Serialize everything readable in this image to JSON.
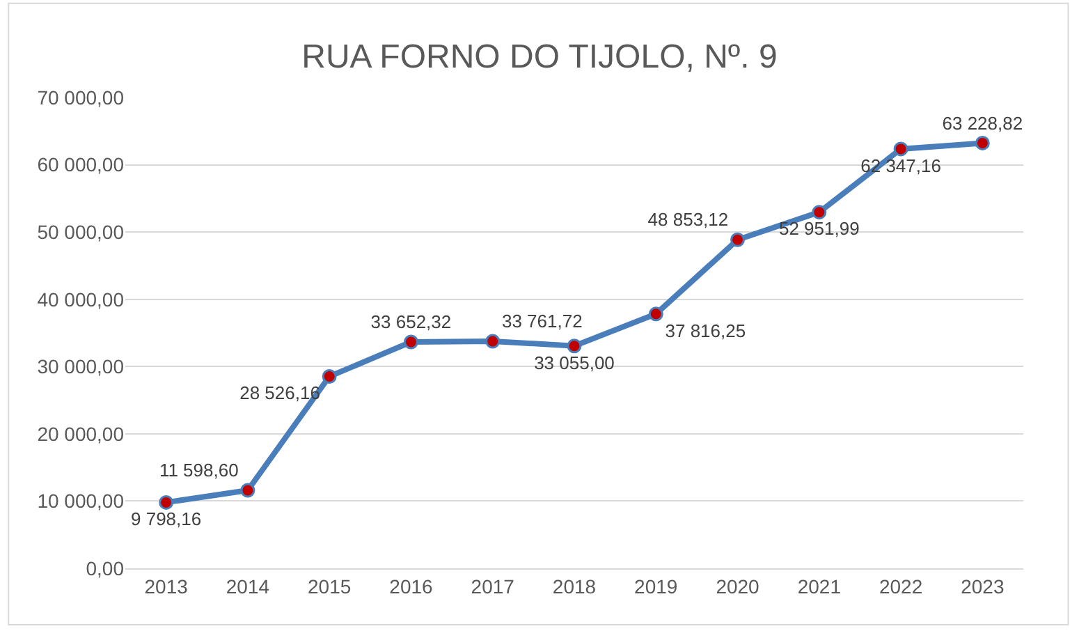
{
  "chart_data": {
    "type": "line",
    "title": "RUA FORNO DO TIJOLO, Nº. 9",
    "categories": [
      "2013",
      "2014",
      "2015",
      "2016",
      "2017",
      "2018",
      "2019",
      "2020",
      "2021",
      "2022",
      "2023"
    ],
    "series": [
      {
        "color": "#4a7ebb",
        "values": [
          9798.16,
          11598.6,
          28526.16,
          33652.32,
          33761.72,
          33055.0,
          37816.25,
          48853.12,
          52951.99,
          62347.16,
          63228.82
        ],
        "value_labels": [
          "9 798,16",
          "11 598,60",
          "28 526,16",
          "33 652,32",
          "33 761,72",
          "33 055,00",
          "37 816,25",
          "48 853,12",
          "52 951,99",
          "62 347,16",
          "63 228,82"
        ]
      }
    ],
    "ylim": [
      0,
      70000
    ],
    "yticks": [
      {
        "value": 0,
        "label": "0,00"
      },
      {
        "value": 10000,
        "label": "10 000,00"
      },
      {
        "value": 20000,
        "label": "20 000,00"
      },
      {
        "value": 30000,
        "label": "30 000,00"
      },
      {
        "value": 40000,
        "label": "40 000,00"
      },
      {
        "value": 50000,
        "label": "50 000,00"
      },
      {
        "value": 60000,
        "label": "60 000,00"
      },
      {
        "value": 70000,
        "label": "70 000,00"
      }
    ],
    "grid": "y",
    "legend": false,
    "marker": "circle",
    "line_style": "solid"
  }
}
